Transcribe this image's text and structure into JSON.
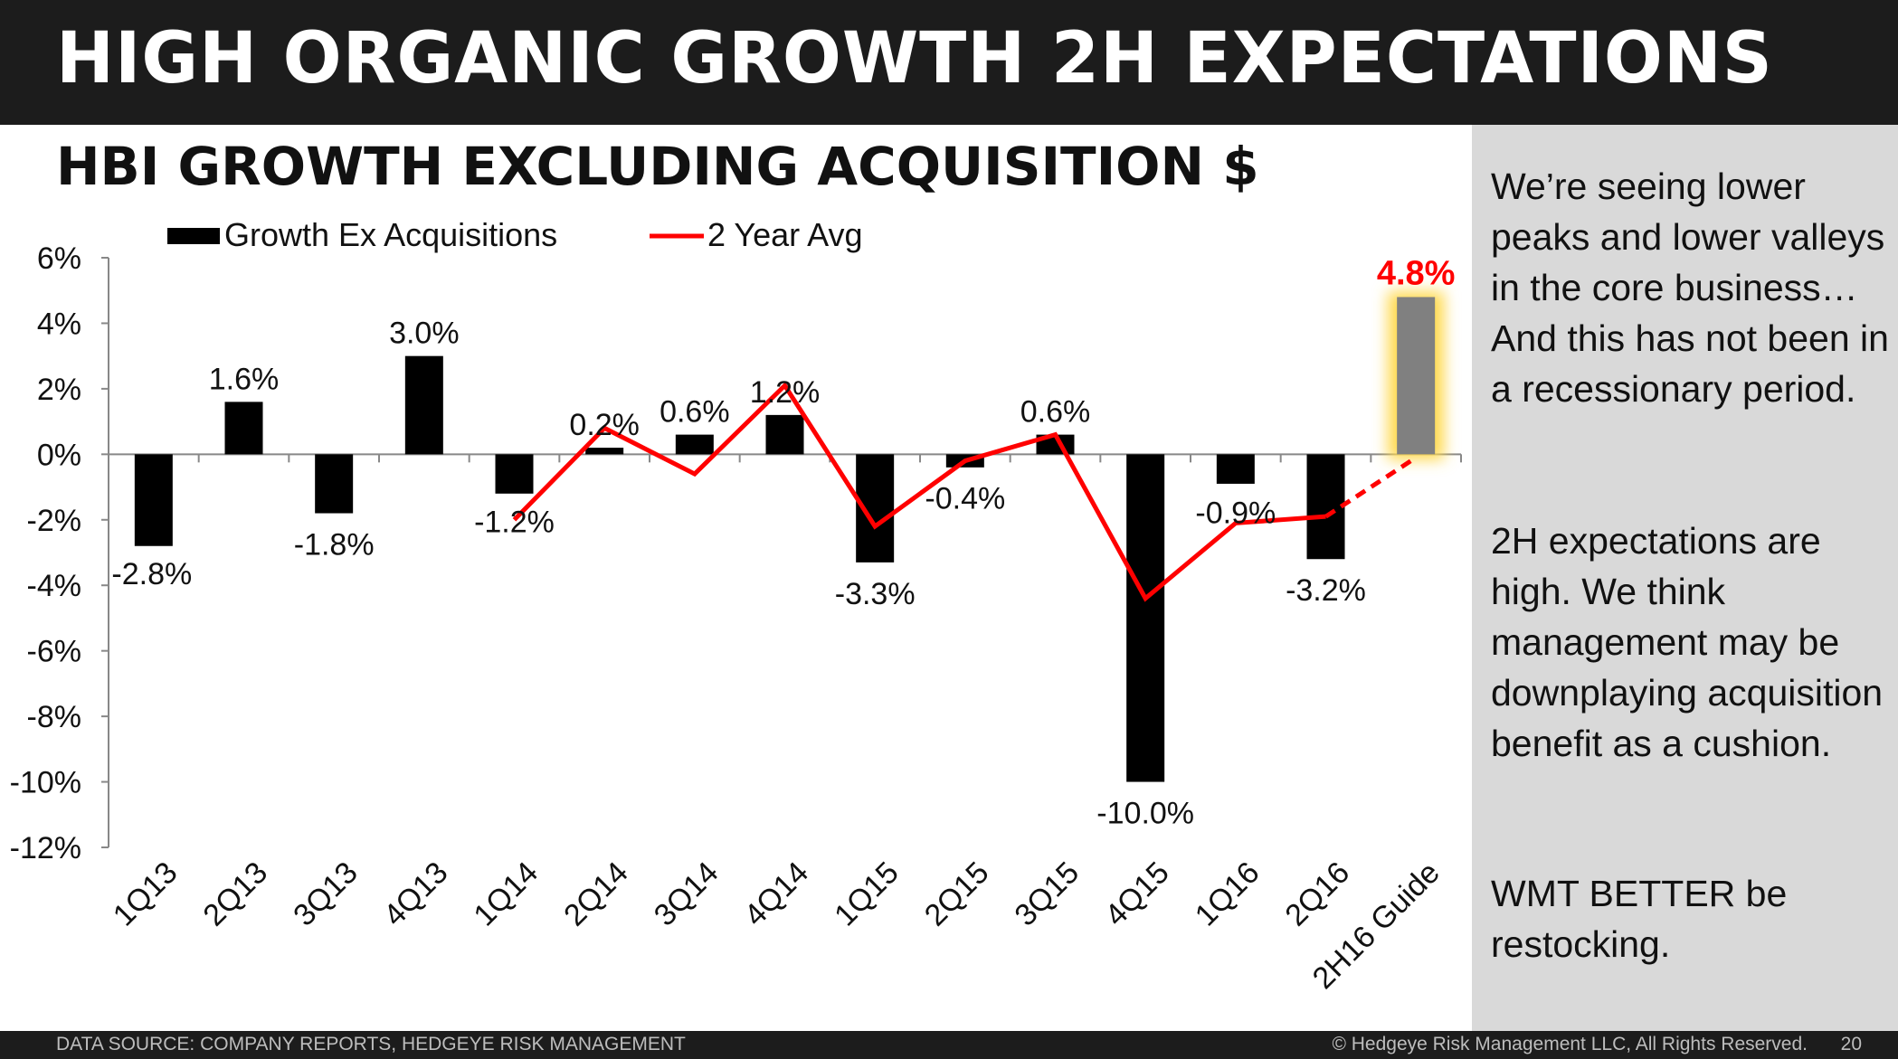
{
  "header": {
    "title": "HIGH ORGANIC GROWTH 2H EXPECTATIONS"
  },
  "panel": {
    "para1": "We’re seeing lower peaks and lower valleys in the core business… And this has not been in a recessionary period.",
    "para2": "2H expectations are high. We think management may be downplaying acquisition benefit as a cushion.",
    "para3": "WMT BETTER be restocking."
  },
  "footer": {
    "source": "DATA SOURCE: COMPANY REPORTS, HEDGEYE RISK MANAGEMENT",
    "copyright": "© Hedgeye Risk Management LLC, All Rights Reserved.",
    "page": "20"
  },
  "chart_data": {
    "type": "bar",
    "title": "HBI GROWTH EXCLUDING ACQUISITION $",
    "categories": [
      "1Q13",
      "2Q13",
      "3Q13",
      "4Q13",
      "1Q14",
      "2Q14",
      "3Q14",
      "4Q14",
      "1Q15",
      "2Q15",
      "3Q15",
      "4Q15",
      "1Q16",
      "2Q16",
      "2H16 Guide"
    ],
    "series": [
      {
        "name": "Growth Ex Acquisitions",
        "type": "bar",
        "values": [
          -2.8,
          1.6,
          -1.8,
          3.0,
          -1.2,
          0.2,
          0.6,
          1.2,
          -3.3,
          -0.4,
          0.6,
          -10.0,
          -0.9,
          -3.2,
          4.8
        ],
        "labels": [
          "-2.8%",
          "1.6%",
          "-1.8%",
          "3.0%",
          "-1.2%",
          "0.2%",
          "0.6%",
          "1.2%",
          "-3.3%",
          "-0.4%",
          "0.6%",
          "-10.0%",
          "-0.9%",
          "-3.2%",
          "4.8%"
        ],
        "color": "#000000",
        "highlight_color": "#808080",
        "highlight_glow": "#ffd94d",
        "highlight_label_color": "#ff0000"
      },
      {
        "name": "2 Year Avg",
        "type": "line",
        "values": [
          null,
          null,
          null,
          null,
          -2.0,
          0.8,
          -0.6,
          2.1,
          -2.2,
          -0.2,
          0.6,
          -4.4,
          -2.1,
          -1.9,
          -0.1
        ],
        "dashed_last_segment": true,
        "color": "#ff0000"
      }
    ],
    "yticks": [
      "6%",
      "4%",
      "2%",
      "0%",
      "-2%",
      "-4%",
      "-6%",
      "-8%",
      "-10%",
      "-12%"
    ],
    "ylim": [
      -12,
      6
    ],
    "legend": "top-left",
    "grid": false
  }
}
